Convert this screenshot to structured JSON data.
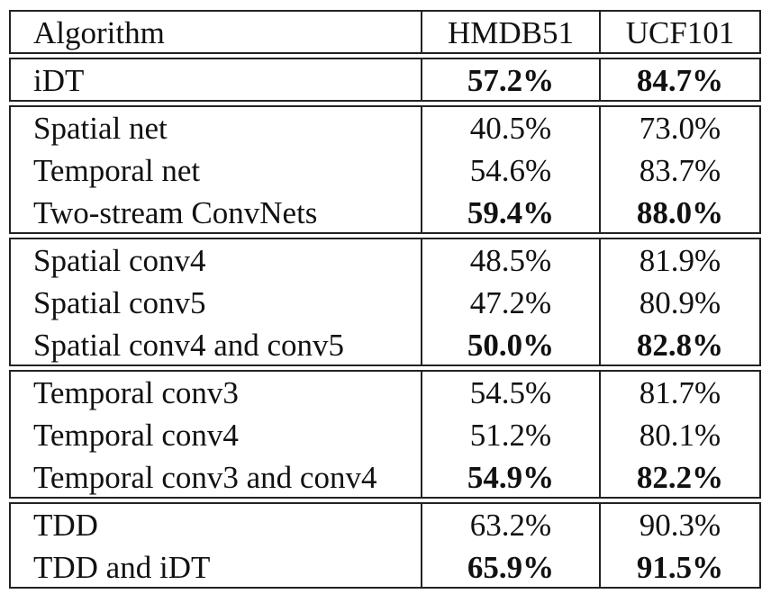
{
  "table": {
    "header": {
      "algorithm": "Algorithm",
      "hmdb": "HMDB51",
      "ucf": "UCF101"
    },
    "groups": [
      {
        "rows": [
          {
            "algorithm": "iDT",
            "hmdb": "57.2%",
            "ucf": "84.7%",
            "bold": true
          }
        ]
      },
      {
        "rows": [
          {
            "algorithm": "Spatial net",
            "hmdb": "40.5%",
            "ucf": "73.0%",
            "bold": false
          },
          {
            "algorithm": "Temporal net",
            "hmdb": "54.6%",
            "ucf": "83.7%",
            "bold": false
          },
          {
            "algorithm": "Two-stream ConvNets",
            "hmdb": "59.4%",
            "ucf": "88.0%",
            "bold": true
          }
        ]
      },
      {
        "rows": [
          {
            "algorithm": "Spatial conv4",
            "hmdb": "48.5%",
            "ucf": "81.9%",
            "bold": false
          },
          {
            "algorithm": "Spatial conv5",
            "hmdb": "47.2%",
            "ucf": "80.9%",
            "bold": false
          },
          {
            "algorithm": "Spatial conv4 and conv5",
            "hmdb": "50.0%",
            "ucf": "82.8%",
            "bold": true
          }
        ]
      },
      {
        "rows": [
          {
            "algorithm": "Temporal conv3",
            "hmdb": "54.5%",
            "ucf": "81.7%",
            "bold": false
          },
          {
            "algorithm": "Temporal conv4",
            "hmdb": "51.2%",
            "ucf": "80.1%",
            "bold": false
          },
          {
            "algorithm": "Temporal conv3 and conv4",
            "hmdb": "54.9%",
            "ucf": "82.2%",
            "bold": true
          }
        ]
      },
      {
        "rows": [
          {
            "algorithm": "TDD",
            "hmdb": "63.2%",
            "ucf": "90.3%",
            "bold": false
          },
          {
            "algorithm": "TDD and iDT",
            "hmdb": "65.9%",
            "ucf": "91.5%",
            "bold": true
          }
        ]
      }
    ]
  }
}
